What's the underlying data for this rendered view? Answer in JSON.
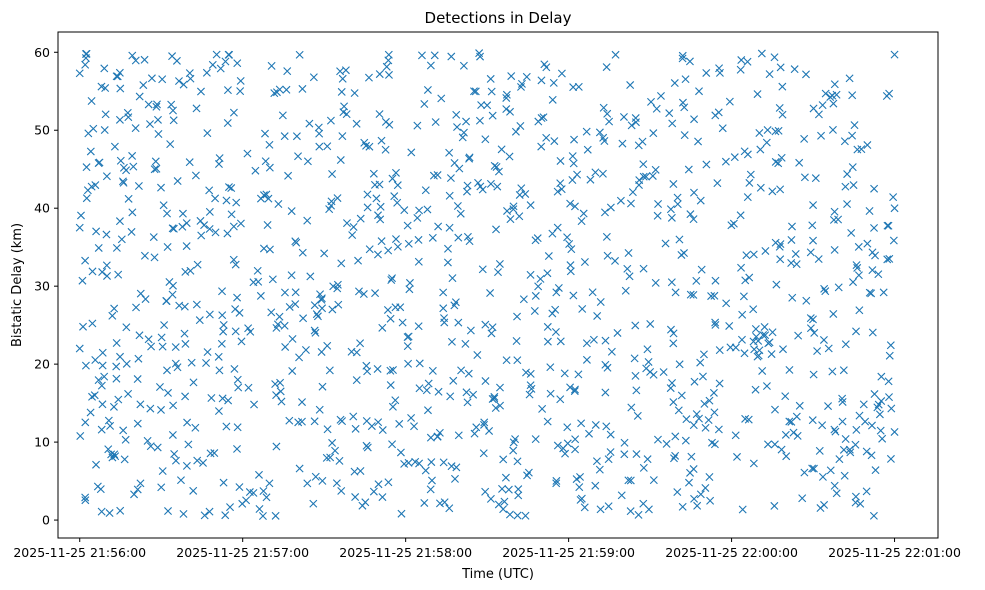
{
  "chart_data": {
    "type": "scatter",
    "title": "Detections in Delay",
    "xlabel": "Time (UTC)",
    "ylabel": "Bistatic Delay (km)",
    "marker": "x",
    "color": "#1f77b4",
    "grid": false,
    "legend": "none",
    "xlim": [
      "2025-11-25 21:55:52",
      "2025-11-25 22:01:16"
    ],
    "ylim": [
      -2.3,
      62.6
    ],
    "x_ticks": [
      "2025-11-25 21:56:00",
      "2025-11-25 21:57:00",
      "2025-11-25 21:58:00",
      "2025-11-25 21:59:00",
      "2025-11-25 22:00:00",
      "2025-11-25 22:01:00"
    ],
    "y_ticks": [
      "0",
      "10",
      "20",
      "30",
      "40",
      "50",
      "60"
    ],
    "x_range": [
      "2025-11-25 21:56:00",
      "2025-11-25 22:01:00"
    ],
    "y_range": [
      0.5,
      59.9
    ],
    "point_count": 1200,
    "series": [
      {
        "points": [
          [
            "2025-11-25 21:56:00",
            57.3
          ],
          [
            "2025-11-25 21:56:00",
            22.0
          ],
          [
            "2025-11-25 21:56:00",
            37.5
          ],
          [
            "2025-11-25 21:56:01",
            30.7
          ],
          [
            "2025-11-25 21:56:02",
            58.4
          ],
          [
            "2025-11-25 21:56:02",
            2.9
          ],
          [
            "2025-11-25 21:56:03",
            42.3
          ],
          [
            "2025-11-25 21:56:04",
            13.8
          ],
          [
            "2025-11-25 21:56:05",
            50.2
          ],
          [
            "2025-11-25 21:56:06",
            7.1
          ],
          [
            "2025-11-25 21:56:07",
            34.9
          ],
          [
            "2025-11-25 21:56:08",
            55.6
          ],
          [
            "2025-11-25 21:56:09",
            18.4
          ],
          [
            "2025-11-25 21:56:10",
            44.1
          ],
          [
            "2025-11-25 21:56:11",
            0.9
          ],
          [
            "2025-11-25 21:56:12",
            26.2
          ],
          [
            "2025-11-25 21:56:14",
            56.9
          ],
          [
            "2025-11-25 21:56:16",
            11.5
          ],
          [
            "2025-11-25 21:56:18",
            41.2
          ],
          [
            "2025-11-25 21:56:20",
            3.3
          ],
          [
            "2025-11-25 21:56:22",
            23.7
          ],
          [
            "2025-11-25 21:56:24",
            33.9
          ],
          [
            "2025-11-25 21:56:26",
            14.3
          ],
          [
            "2025-11-25 21:56:28",
            46.0
          ],
          [
            "2025-11-25 21:56:30",
            4.2
          ],
          [
            "2025-11-25 21:56:32",
            28.1
          ],
          [
            "2025-11-25 21:56:34",
            59.5
          ],
          [
            "2025-11-25 21:56:36",
            19.6
          ],
          [
            "2025-11-25 21:56:38",
            39.3
          ],
          [
            "2025-11-25 21:56:40",
            9.7
          ],
          [
            "2025-11-25 21:56:43",
            52.8
          ],
          [
            "2025-11-25 21:56:46",
            0.6
          ],
          [
            "2025-11-25 21:56:50",
            36.9
          ],
          [
            "2025-11-25 21:56:54",
            12.0
          ],
          [
            "2025-11-25 21:56:58",
            58.6
          ],
          [
            "2025-11-25 21:57:02",
            24.6
          ],
          [
            "2025-11-25 21:57:06",
            5.8
          ],
          [
            "2025-11-25 21:57:10",
            45.2
          ],
          [
            "2025-11-25 21:57:14",
            16.5
          ],
          [
            "2025-11-25 21:57:18",
            31.4
          ],
          [
            "2025-11-25 21:57:22",
            55.3
          ],
          [
            "2025-11-25 21:57:26",
            2.1
          ],
          [
            "2025-11-25 21:57:30",
            34.2
          ],
          [
            "2025-11-25 21:57:34",
            8.9
          ],
          [
            "2025-11-25 21:57:38",
            57.7
          ],
          [
            "2025-11-25 21:57:42",
            21.5
          ],
          [
            "2025-11-25 21:57:46",
            40.1
          ],
          [
            "2025-11-25 21:57:50",
            4.6
          ],
          [
            "2025-11-25 21:57:54",
            50.7
          ],
          [
            "2025-11-25 21:57:58",
            27.3
          ],
          [
            "2025-11-25 21:58:02",
            13.1
          ],
          [
            "2025-11-25 21:58:06",
            59.6
          ],
          [
            "2025-11-25 21:58:10",
            36.2
          ],
          [
            "2025-11-25 21:58:14",
            7.4
          ],
          [
            "2025-11-25 21:58:18",
            45.8
          ],
          [
            "2025-11-25 21:58:22",
            22.6
          ],
          [
            "2025-11-25 21:58:26",
            11.9
          ],
          [
            "2025-11-25 21:58:30",
            53.2
          ],
          [
            "2025-11-25 21:58:34",
            31.8
          ],
          [
            "2025-11-25 21:58:38",
            3.9
          ],
          [
            "2025-11-25 21:58:42",
            41.7
          ],
          [
            "2025-11-25 21:58:46",
            17.3
          ],
          [
            "2025-11-25 21:58:50",
            56.4
          ],
          [
            "2025-11-25 21:58:54",
            26.5
          ],
          [
            "2025-11-25 21:58:58",
            9.2
          ],
          [
            "2025-11-25 21:59:02",
            48.8
          ],
          [
            "2025-11-25 21:59:06",
            33.1
          ],
          [
            "2025-11-25 21:59:10",
            12.2
          ],
          [
            "2025-11-25 21:59:14",
            58.1
          ],
          [
            "2025-11-25 21:59:18",
            24.0
          ],
          [
            "2025-11-25 21:59:22",
            5.1
          ],
          [
            "2025-11-25 21:59:26",
            43.6
          ],
          [
            "2025-11-25 21:59:30",
            19.0
          ],
          [
            "2025-11-25 21:59:34",
            54.4
          ],
          [
            "2025-11-25 21:59:38",
            30.5
          ],
          [
            "2025-11-25 21:59:42",
            1.7
          ],
          [
            "2025-11-25 21:59:46",
            38.6
          ],
          [
            "2025-11-25 21:59:50",
            14.9
          ],
          [
            "2025-11-25 21:59:54",
            51.9
          ],
          [
            "2025-11-25 21:59:58",
            27.8
          ],
          [
            "2025-11-25 22:00:02",
            8.1
          ],
          [
            "2025-11-25 22:00:06",
            46.9
          ],
          [
            "2025-11-25 22:00:10",
            21.1
          ],
          [
            "2025-11-25 22:00:14",
            57.2
          ],
          [
            "2025-11-25 22:00:18",
            35.4
          ],
          [
            "2025-11-25 22:00:22",
            12.6
          ],
          [
            "2025-11-25 22:00:26",
            2.8
          ],
          [
            "2025-11-25 22:00:30",
            40.4
          ],
          [
            "2025-11-25 22:00:34",
            23.1
          ],
          [
            "2025-11-25 22:00:38",
            55.9
          ],
          [
            "2025-11-25 22:00:42",
            10.4
          ],
          [
            "2025-11-25 22:00:46",
            32.7
          ],
          [
            "2025-11-25 22:00:50",
            48.1
          ],
          [
            "2025-11-25 22:00:53",
            6.4
          ],
          [
            "2025-11-25 22:00:56",
            29.2
          ],
          [
            "2025-11-25 22:00:58",
            54.7
          ],
          [
            "2025-11-25 22:01:00",
            11.3
          ],
          [
            "2025-11-25 22:01:00",
            40.0
          ],
          [
            "2025-11-25 22:01:00",
            59.7
          ]
        ]
      }
    ]
  }
}
